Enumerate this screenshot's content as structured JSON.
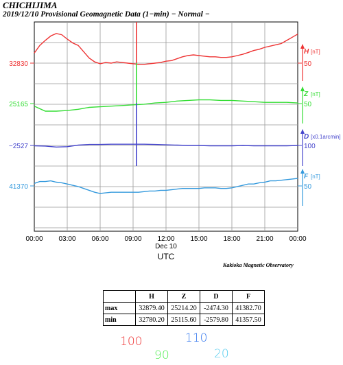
{
  "header": {
    "title": "CHICHIJIMA",
    "subtitle": "2019/12/10  Provisional Geomagnetic Data (1−min)  − Normal −"
  },
  "chart_data": {
    "type": "line",
    "x_ticks": [
      "00:00",
      "03:00",
      "06:00",
      "09:00",
      "12:00",
      "15:00",
      "18:00",
      "21:00",
      "00:00"
    ],
    "x_date_label": "Dec 10",
    "xlabel": "UTC",
    "series": [
      {
        "name": "H",
        "unit": "[nT]",
        "scale_label": "50",
        "left_label": "32830",
        "color": "#ee3333",
        "base": 32830,
        "per_unit": 50,
        "x_hours": [
          0,
          0.5,
          1,
          1.5,
          2,
          2.5,
          3,
          3.5,
          4,
          4.5,
          5,
          5.5,
          6,
          6.5,
          7,
          7.5,
          8,
          8.5,
          9,
          9.5,
          10,
          10.5,
          11,
          11.5,
          12,
          12.5,
          13,
          13.5,
          14,
          14.5,
          15,
          15.5,
          16,
          16.5,
          17,
          17.5,
          18,
          18.5,
          19,
          19.5,
          20,
          20.5,
          21,
          21.5,
          22,
          22.5,
          23,
          23.5,
          24
        ],
        "values": [
          32846,
          32858,
          32866,
          32873,
          32877,
          32875,
          32868,
          32862,
          32858,
          32848,
          32838,
          32832,
          32829,
          32831,
          32830,
          32832,
          32831,
          32830,
          32829,
          32828,
          32828,
          32829,
          32830,
          32831,
          32833,
          32834,
          32837,
          32840,
          32842,
          32843,
          32842,
          32841,
          32840,
          32840,
          32839,
          32839,
          32840,
          32842,
          32844,
          32847,
          32850,
          32852,
          32855,
          32857,
          32859,
          32861,
          32866,
          32871,
          32876
        ]
      },
      {
        "name": "Z",
        "unit": "[nT]",
        "scale_label": "50",
        "left_label": "25165",
        "color": "#33dd33",
        "base": 25165,
        "per_unit": 50,
        "x_hours": [
          0,
          1,
          2,
          3,
          4,
          5,
          6,
          7,
          8,
          9,
          10,
          11,
          12,
          13,
          14,
          15,
          16,
          17,
          18,
          19,
          20,
          21,
          22,
          23,
          24
        ],
        "values": [
          25161,
          25153,
          25153,
          25154,
          25156,
          25159,
          25160,
          25161,
          25162,
          25163,
          25164,
          25166,
          25167,
          25169,
          25170,
          25171,
          25171,
          25170,
          25170,
          25169,
          25168,
          25167,
          25167,
          25167,
          25166
        ]
      },
      {
        "name": "D",
        "unit": "[x0.1arcmin]",
        "scale_label": "100",
        "left_label": "−2527",
        "color": "#4444cc",
        "base": -2527,
        "per_unit": 100,
        "x_hours": [
          0,
          1,
          2,
          3,
          4,
          5,
          6,
          7,
          8,
          9,
          10,
          11,
          12,
          13,
          14,
          15,
          16,
          17,
          18,
          19,
          20,
          21,
          22,
          23,
          24
        ],
        "values": [
          -2528,
          -2529,
          -2532,
          -2531,
          -2526,
          -2524,
          -2524,
          -2523,
          -2523,
          -2523,
          -2523,
          -2524,
          -2525,
          -2526,
          -2527,
          -2527,
          -2528,
          -2528,
          -2528,
          -2527,
          -2528,
          -2528,
          -2528,
          -2528,
          -2527
        ]
      },
      {
        "name": "F",
        "unit": "[nT]",
        "scale_label": "50",
        "left_label": "41370",
        "color": "#3399dd",
        "base": 41370,
        "per_unit": 50,
        "x_hours": [
          0,
          0.5,
          1,
          1.5,
          2,
          2.5,
          3,
          3.5,
          4,
          4.5,
          5,
          5.5,
          6,
          6.5,
          7,
          7.5,
          8,
          8.5,
          9,
          9.5,
          10,
          10.5,
          11,
          11.5,
          12,
          12.5,
          13,
          13.5,
          14,
          14.5,
          15,
          15.5,
          16,
          16.5,
          17,
          17.5,
          18,
          18.5,
          19,
          19.5,
          20,
          20.5,
          21,
          21.5,
          22,
          22.5,
          23,
          23.5,
          24
        ],
        "values": [
          41374,
          41377,
          41377,
          41378,
          41376,
          41375,
          41373,
          41371,
          41369,
          41366,
          41363,
          41360,
          41358,
          41359,
          41360,
          41360,
          41360,
          41360,
          41360,
          41360,
          41361,
          41362,
          41362,
          41363,
          41363,
          41364,
          41365,
          41366,
          41366,
          41366,
          41366,
          41367,
          41367,
          41367,
          41366,
          41366,
          41367,
          41369,
          41371,
          41373,
          41373,
          41375,
          41376,
          41378,
          41378,
          41379,
          41380,
          41381,
          41382
        ]
      }
    ],
    "spike_hour": 9.3
  },
  "footer": {
    "observatory": "Kakioka Magnetic Observatory"
  },
  "stats_table": {
    "headers": [
      "",
      "H",
      "Z",
      "D",
      "F"
    ],
    "rows": [
      {
        "label": "max",
        "H": "32879.40",
        "Z": "25214.20",
        "D": "-2474.30",
        "F": "41382.70"
      },
      {
        "label": "min",
        "H": "32780.20",
        "Z": "25115.60",
        "D": "-2579.80",
        "F": "41357.50"
      }
    ]
  },
  "handwritten": [
    {
      "text": "100",
      "color": "#ee3333"
    },
    {
      "text": "90",
      "color": "#55ee55"
    },
    {
      "text": "110",
      "color": "#3377ee"
    },
    {
      "text": "20",
      "color": "#55ccee"
    }
  ]
}
